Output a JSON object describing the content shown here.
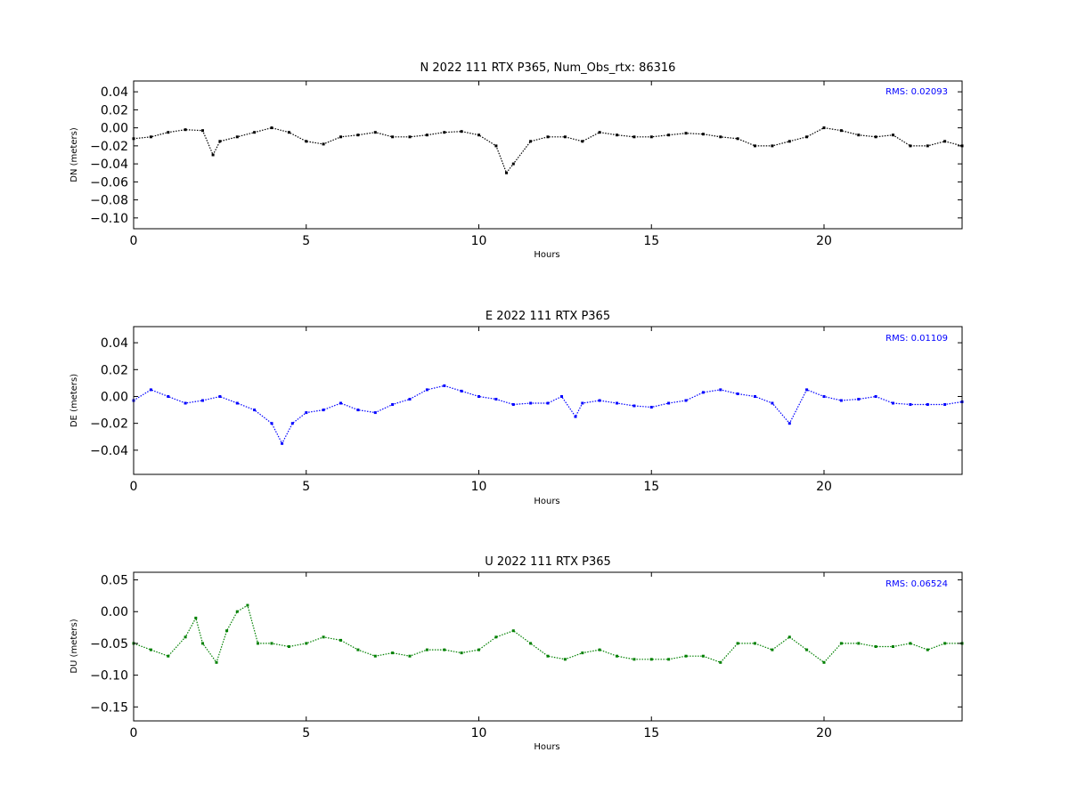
{
  "chart_data": [
    {
      "type": "scatter",
      "title": "N 2022 111 RTX  P365, Num_Obs_rtx: 86316",
      "xlabel": "Hours",
      "ylabel": "DN (meters)",
      "xlim": [
        0,
        24
      ],
      "ylim": [
        -0.112,
        0.052
      ],
      "xticks": [
        0,
        5,
        10,
        15,
        20
      ],
      "yticks": [
        0.04,
        0.02,
        0.0,
        -0.02,
        -0.04,
        -0.06,
        -0.08,
        -0.1
      ],
      "ytick_labels": [
        "0.04",
        "0.02",
        "0.00",
        "−0.02",
        "−0.04",
        "−0.06",
        "−0.08",
        "−0.10"
      ],
      "grid": false,
      "color": "#000000",
      "annotation": "RMS:  0.02093",
      "series": [
        {
          "x": [
            0,
            0.5,
            1,
            1.5,
            2,
            2.3,
            2.5,
            3,
            3.5,
            4,
            4.5,
            5,
            5.5,
            6,
            6.5,
            7,
            7.5,
            8,
            8.5,
            9,
            9.5,
            10,
            10.5,
            10.8,
            11,
            11.5,
            12,
            12.5,
            13,
            13.5,
            14,
            14.5,
            15,
            15.5,
            16,
            16.5,
            17,
            17.5,
            18,
            18.5,
            19,
            19.5,
            20,
            20.5,
            21,
            21.5,
            22,
            22.5,
            23,
            23.5,
            24
          ],
          "y": [
            -0.012,
            -0.01,
            -0.005,
            -0.002,
            -0.003,
            -0.03,
            -0.015,
            -0.01,
            -0.005,
            0.0,
            -0.005,
            -0.015,
            -0.018,
            -0.01,
            -0.008,
            -0.005,
            -0.01,
            -0.01,
            -0.008,
            -0.005,
            -0.004,
            -0.008,
            -0.02,
            -0.05,
            -0.04,
            -0.015,
            -0.01,
            -0.01,
            -0.015,
            -0.005,
            -0.008,
            -0.01,
            -0.01,
            -0.008,
            -0.006,
            -0.007,
            -0.01,
            -0.012,
            -0.02,
            -0.02,
            -0.015,
            -0.01,
            0.0,
            -0.003,
            -0.008,
            -0.01,
            -0.008,
            -0.02,
            -0.02,
            -0.015,
            -0.02
          ]
        }
      ]
    },
    {
      "type": "scatter",
      "title": "E 2022 111 RTX  P365",
      "xlabel": "Hours",
      "ylabel": "DE (meters)",
      "xlim": [
        0,
        24
      ],
      "ylim": [
        -0.058,
        0.052
      ],
      "xticks": [
        0,
        5,
        10,
        15,
        20
      ],
      "yticks": [
        0.04,
        0.02,
        0.0,
        -0.02,
        -0.04
      ],
      "ytick_labels": [
        "0.04",
        "0.02",
        "0.00",
        "−0.02",
        "−0.04"
      ],
      "grid": false,
      "color": "#0000ff",
      "annotation": "RMS:  0.01109",
      "series": [
        {
          "x": [
            0,
            0.5,
            1,
            1.5,
            2,
            2.5,
            3,
            3.5,
            4,
            4.3,
            4.6,
            5,
            5.5,
            6,
            6.5,
            7,
            7.5,
            8,
            8.5,
            9,
            9.5,
            10,
            10.5,
            11,
            11.5,
            12,
            12.4,
            12.8,
            13,
            13.5,
            14,
            14.5,
            15,
            15.5,
            16,
            16.5,
            17,
            17.5,
            18,
            18.5,
            19,
            19.5,
            20,
            20.5,
            21,
            21.5,
            22,
            22.5,
            23,
            23.5,
            24
          ],
          "y": [
            -0.003,
            0.005,
            0.0,
            -0.005,
            -0.003,
            0.0,
            -0.005,
            -0.01,
            -0.02,
            -0.035,
            -0.02,
            -0.012,
            -0.01,
            -0.005,
            -0.01,
            -0.012,
            -0.006,
            -0.002,
            0.005,
            0.008,
            0.004,
            0.0,
            -0.002,
            -0.006,
            -0.005,
            -0.005,
            0.0,
            -0.015,
            -0.005,
            -0.003,
            -0.005,
            -0.007,
            -0.008,
            -0.005,
            -0.003,
            0.003,
            0.005,
            0.002,
            0.0,
            -0.005,
            -0.02,
            0.005,
            0.0,
            -0.003,
            -0.002,
            0.0,
            -0.005,
            -0.006,
            -0.006,
            -0.006,
            -0.004
          ]
        }
      ]
    },
    {
      "type": "scatter",
      "title": "U 2022 111 RTX  P365",
      "xlabel": "Hours",
      "ylabel": "DU (meters)",
      "xlim": [
        0,
        24
      ],
      "ylim": [
        -0.172,
        0.062
      ],
      "xticks": [
        0,
        5,
        10,
        15,
        20
      ],
      "yticks": [
        0.05,
        0.0,
        -0.05,
        -0.1,
        -0.15
      ],
      "ytick_labels": [
        "0.05",
        "0.00",
        "−0.05",
        "−0.10",
        "−0.15"
      ],
      "grid": false,
      "color": "#008000",
      "annotation": "RMS:  0.06524",
      "series": [
        {
          "x": [
            0,
            0.5,
            1,
            1.5,
            1.8,
            2,
            2.4,
            2.7,
            3,
            3.3,
            3.6,
            4,
            4.5,
            5,
            5.5,
            6,
            6.5,
            7,
            7.5,
            8,
            8.5,
            9,
            9.5,
            10,
            10.5,
            11,
            11.5,
            12,
            12.5,
            13,
            13.5,
            14,
            14.5,
            15,
            15.5,
            16,
            16.5,
            17,
            17.5,
            18,
            18.5,
            19,
            19.5,
            20,
            20.5,
            21,
            21.5,
            22,
            22.5,
            23,
            23.5,
            24
          ],
          "y": [
            -0.05,
            -0.06,
            -0.07,
            -0.04,
            -0.01,
            -0.05,
            -0.08,
            -0.03,
            0.0,
            0.01,
            -0.05,
            -0.05,
            -0.055,
            -0.05,
            -0.04,
            -0.045,
            -0.06,
            -0.07,
            -0.065,
            -0.07,
            -0.06,
            -0.06,
            -0.065,
            -0.06,
            -0.04,
            -0.03,
            -0.05,
            -0.07,
            -0.075,
            -0.065,
            -0.06,
            -0.07,
            -0.075,
            -0.075,
            -0.075,
            -0.07,
            -0.07,
            -0.08,
            -0.05,
            -0.05,
            -0.06,
            -0.04,
            -0.06,
            -0.08,
            -0.05,
            -0.05,
            -0.055,
            -0.055,
            -0.05,
            -0.06,
            -0.05,
            -0.05
          ]
        }
      ]
    }
  ]
}
